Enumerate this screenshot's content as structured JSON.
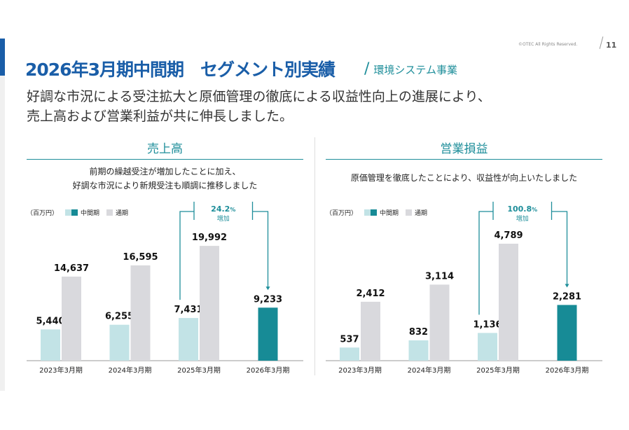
{
  "header": {
    "title": "2026年3月期中間期　セグメント別実績",
    "subtitle": "環境システム事業",
    "slash": "/",
    "copyright": "©OTEC All Rights Reserved.",
    "page": "11"
  },
  "lead": [
    "好調な市況による受注拡大と原価管理の徹底による収益性向上の進展により、",
    "売上高および営業利益が共に伸長しました。"
  ],
  "colors": {
    "interim_past": "#c2e3e6",
    "full_year": "#d9d9dd",
    "interim_current": "#178b96",
    "accent": "#1e8e9a"
  },
  "chart_data": [
    {
      "type": "bar",
      "title": "売上高",
      "description": [
        "前期の繰越受注が増加したことに加え、",
        "好調な市況により新規受注も順調に推移しました"
      ],
      "unit": "（百万円）",
      "legend": [
        "中間期",
        "通期"
      ],
      "categories": [
        "2023年3月期",
        "2024年3月期",
        "2025年3月期",
        "2026年3月期"
      ],
      "series": [
        {
          "name": "中間期",
          "values": [
            5440,
            6255,
            7431,
            9233
          ]
        },
        {
          "name": "通期",
          "values": [
            14637,
            16595,
            19992,
            null
          ]
        }
      ],
      "labels": {
        "中間期": [
          "5,440",
          "6,255",
          "7,431",
          "9,233"
        ],
        "通期": [
          "14,637",
          "16,595",
          "19,992",
          ""
        ]
      },
      "annotation": {
        "value": "24.2",
        "pct": "%",
        "text": "増加"
      },
      "ylim": [
        0,
        20000
      ]
    },
    {
      "type": "bar",
      "title": "営業損益",
      "description": [
        "原価管理を徹底したことにより、収益性が向上いたしました"
      ],
      "unit": "（百万円）",
      "legend": [
        "中間期",
        "通期"
      ],
      "categories": [
        "2023年3月期",
        "2024年3月期",
        "2025年3月期",
        "2026年3月期"
      ],
      "series": [
        {
          "name": "中間期",
          "values": [
            537,
            832,
            1136,
            2281
          ]
        },
        {
          "name": "通期",
          "values": [
            2412,
            3114,
            4789,
            null
          ]
        }
      ],
      "labels": {
        "中間期": [
          "537",
          "832",
          "1,136",
          "2,281"
        ],
        "通期": [
          "2,412",
          "3,114",
          "4,789",
          ""
        ]
      },
      "annotation": {
        "value": "100.8",
        "pct": "%",
        "text": "増加"
      },
      "ylim": [
        0,
        4789
      ]
    }
  ]
}
